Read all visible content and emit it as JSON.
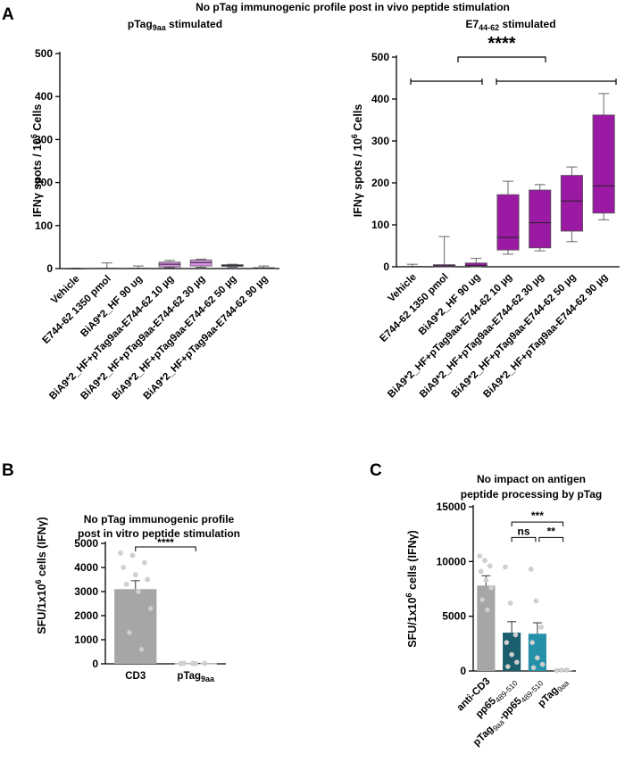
{
  "figure_title": "No pTag immunogenic profile post  in vivo peptide stimulation",
  "panel_labels": {
    "a": "A",
    "b": "B",
    "c": "C"
  },
  "chart_data": [
    {
      "id": "A-left",
      "type": "box",
      "title_main": "pTag",
      "title_sub": "9aa",
      "title_rest": " stimulated",
      "ylabel": "IFNγ spots / 10",
      "ylabel_sup": "6",
      "ylabel_rest": " Cells",
      "ylim": [
        0,
        500
      ],
      "yticks": [
        0,
        100,
        200,
        300,
        400,
        500
      ],
      "color": "#d98fe6",
      "categories": [
        "Vehicle",
        "E744-62 1350 pmol",
        "BiA9*2_HF 90 ug",
        "BiA9*2_HF+pTag9aa-E744-62 10 µg",
        "BiA9*2_HF+pTag9aa-E744-62 30 µg",
        "BiA9*2_HF+pTag9aa-E744-62 50 µg",
        "BiA9*2_HF+pTag9aa-E744-62 90 µg"
      ],
      "boxes": [
        {
          "min": 0,
          "q1": 0,
          "median": 0,
          "q3": 0,
          "max": 1
        },
        {
          "min": 0,
          "q1": 0,
          "median": 0,
          "q3": 1,
          "max": 13
        },
        {
          "min": 0,
          "q1": 0,
          "median": 0,
          "q3": 1,
          "max": 6
        },
        {
          "min": 2,
          "q1": 4,
          "median": 10,
          "q3": 15,
          "max": 19
        },
        {
          "min": 3,
          "q1": 6,
          "median": 14,
          "q3": 20,
          "max": 22
        },
        {
          "min": 3,
          "q1": 5,
          "median": 7,
          "q3": 9,
          "max": 10
        },
        {
          "min": 0,
          "q1": 0,
          "median": 1,
          "q3": 2,
          "max": 6
        }
      ]
    },
    {
      "id": "A-right",
      "type": "box",
      "title_main": "E7",
      "title_sub": "44-62",
      "title_rest": " stimulated",
      "ylabel": "IFNγ spots / 10",
      "ylabel_sup": "6",
      "ylabel_rest": " Cells",
      "ylim": [
        0,
        500
      ],
      "yticks": [
        0,
        100,
        200,
        300,
        400,
        500
      ],
      "color": "#9b1aa3",
      "categories": [
        "Vehicle",
        "E744-62 1350 pmol",
        "BiA9*2_HF 90 ug",
        "BiA9*2_HF+pTag9aa-E744-62 10 µg",
        "BiA9*2_HF+pTag9aa-E744-62 30 µg",
        "BiA9*2_HF+pTag9aa-E744-62 50 µg",
        "BiA9*2_HF+pTag9aa-E744-62 90 µg"
      ],
      "boxes": [
        {
          "min": 0,
          "q1": 0,
          "median": 0,
          "q3": 1,
          "max": 6
        },
        {
          "min": 0,
          "q1": 0,
          "median": 2,
          "q3": 5,
          "max": 72
        },
        {
          "min": 0,
          "q1": 1,
          "median": 3,
          "q3": 9,
          "max": 20
        },
        {
          "min": 30,
          "q1": 40,
          "median": 70,
          "q3": 172,
          "max": 204
        },
        {
          "min": 38,
          "q1": 45,
          "median": 105,
          "q3": 183,
          "max": 196
        },
        {
          "min": 60,
          "q1": 85,
          "median": 157,
          "q3": 218,
          "max": 238
        },
        {
          "min": 112,
          "q1": 128,
          "median": 193,
          "q3": 362,
          "max": 413
        }
      ],
      "significance": "****"
    },
    {
      "id": "B",
      "type": "bar",
      "title": [
        "No pTag immunogenic profile",
        "post in vitro peptide stimulation"
      ],
      "ylabel": "SFU/1x10",
      "ylabel_sup": "6",
      "ylabel_rest": " cells (IFNγ)",
      "ylim": [
        0,
        5000
      ],
      "yticks": [
        0,
        1000,
        2000,
        3000,
        4000,
        5000
      ],
      "categories": [
        "CD3",
        "pTag"
      ],
      "category_subs": [
        "",
        "9aa"
      ],
      "values": [
        3100,
        15
      ],
      "errors": [
        350,
        5
      ],
      "colors": [
        "#a6a6a6",
        "#d9d9d9"
      ],
      "points": [
        [
          4600,
          4500,
          4200,
          4000,
          3700,
          3500,
          3300,
          3000,
          2300,
          1300,
          600
        ],
        [
          10,
          15,
          20,
          25,
          5
        ]
      ],
      "significance": "****"
    },
    {
      "id": "C",
      "type": "bar",
      "title": [
        "No impact on antigen",
        "peptide processing by pTag"
      ],
      "ylabel": "SFU/1x10",
      "ylabel_sup": "6",
      "ylabel_rest": " cells (IFNγ)",
      "ylim": [
        0,
        15000
      ],
      "yticks": [
        0,
        5000,
        10000,
        15000
      ],
      "categories": [
        "anti-CD3",
        "pp65",
        "pTag",
        "pTag"
      ],
      "category_subs": [
        "",
        "489-510",
        "9aa",
        "9aa"
      ],
      "category_tails": [
        "",
        "",
        "-pp65",
        ""
      ],
      "category_tail_subs": [
        "",
        "",
        "489-510",
        ""
      ],
      "values": [
        7800,
        3500,
        3400,
        80
      ],
      "errors": [
        900,
        1000,
        1000,
        40
      ],
      "colors": [
        "#a6a6a6",
        "#1b5e6e",
        "#2591a8",
        "#cfcfcf"
      ],
      "points": [
        [
          10500,
          10100,
          9600,
          9100,
          8300,
          7600,
          6500,
          5600
        ],
        [
          9500,
          6200,
          3300,
          2600,
          1500,
          800,
          400
        ],
        [
          9300,
          6400,
          4000,
          2600,
          1200,
          600,
          300
        ],
        [
          50,
          80,
          100
        ]
      ],
      "significance": [
        {
          "label": "ns",
          "from": 1,
          "to": 2
        },
        {
          "label": "**",
          "from": 2,
          "to": 3
        },
        {
          "label": "***",
          "from": 1,
          "to": 3
        }
      ]
    }
  ]
}
